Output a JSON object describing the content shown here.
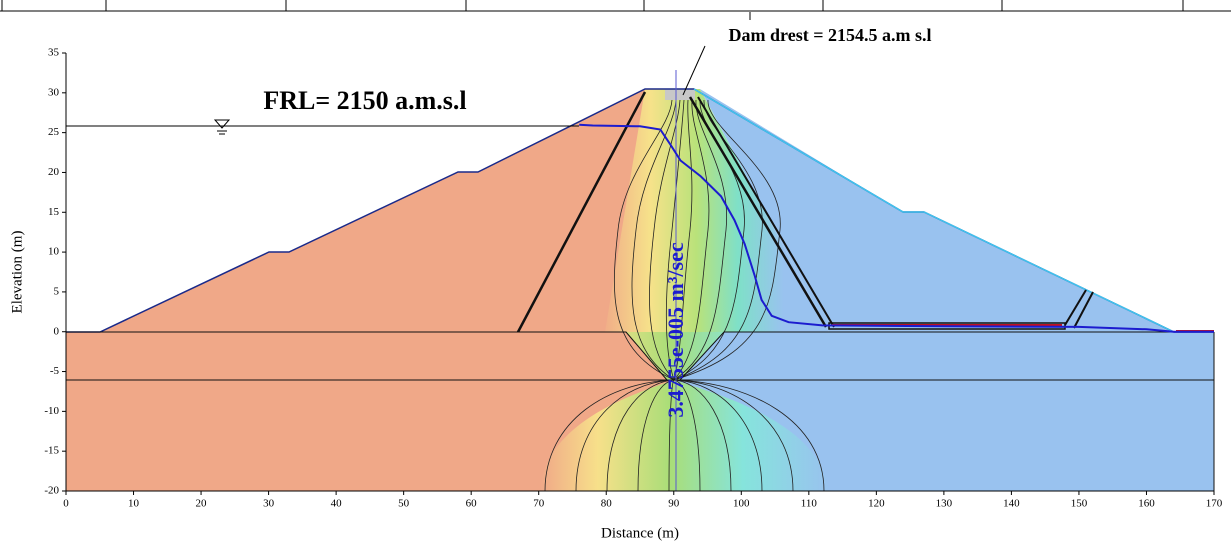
{
  "chart_data": {
    "type": "section",
    "xlabel": "Distance (m)",
    "ylabel": "Elevation (m)",
    "xlim": [
      0,
      170
    ],
    "ylim": [
      -20,
      35
    ],
    "xticks": [
      0,
      10,
      20,
      30,
      40,
      50,
      60,
      70,
      80,
      90,
      100,
      110,
      120,
      130,
      140,
      150,
      160,
      170
    ],
    "yticks": [
      -20,
      -15,
      -10,
      -5,
      0,
      5,
      10,
      15,
      20,
      25,
      30,
      35
    ],
    "annotations": [
      "FRL= 2150 a.m.s.l",
      "Dam drest = 2154.5 a.m s.l",
      "3.4755e-005 m³/sec"
    ],
    "series": [
      {
        "color": "#1c1ccf",
        "x": [
          76,
          78,
          85,
          88,
          89.5,
          91,
          94,
          97,
          99,
          100.5,
          102,
          103,
          104.5,
          107,
          112,
          130,
          150,
          160,
          164,
          170
        ],
        "values": [
          26,
          25.9,
          25.8,
          25.4,
          23.5,
          21.5,
          19.5,
          17,
          14,
          11,
          7,
          4,
          2,
          1.2,
          0.8,
          0.7,
          0.6,
          0.3,
          0,
          0
        ]
      }
    ]
  }
}
